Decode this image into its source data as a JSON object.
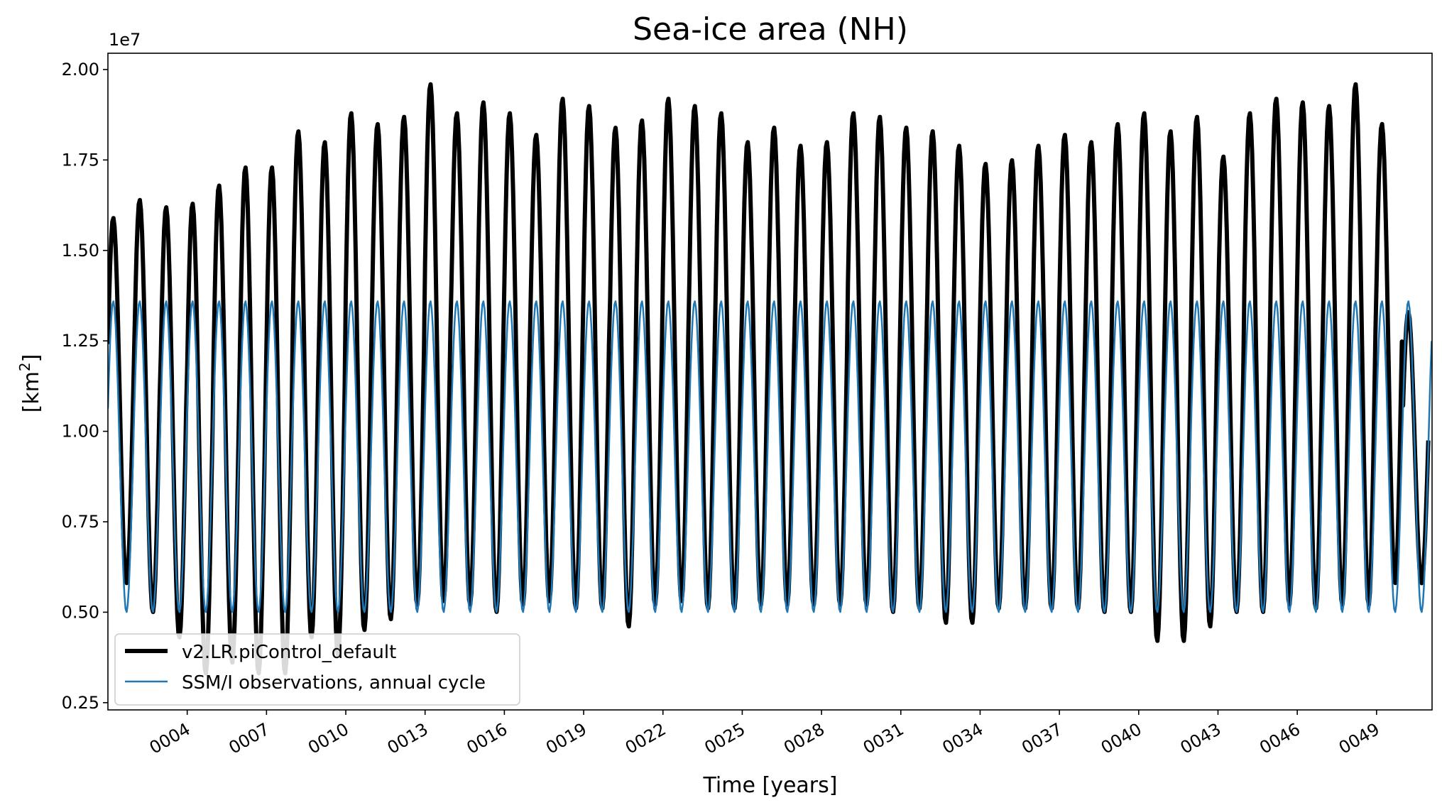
{
  "chart_data": {
    "type": "line",
    "title": "Sea-ice area (NH)",
    "xlabel": "Time [years]",
    "ylabel_base": "[km",
    "ylabel_sup": "2",
    "ylabel_end": "]",
    "offset_text": "1e7",
    "xlim": [
      1,
      51.1
    ],
    "ylim": [
      0.23,
      2.045
    ],
    "y_ticks": [
      0.25,
      0.5,
      0.75,
      1.0,
      1.25,
      1.5,
      1.75,
      2.0
    ],
    "y_tick_labels": [
      "0.25",
      "0.50",
      "0.75",
      "1.00",
      "1.25",
      "1.50",
      "1.75",
      "2.00"
    ],
    "x_ticks": [
      4,
      7,
      10,
      13,
      16,
      19,
      22,
      25,
      28,
      31,
      34,
      37,
      40,
      43,
      46,
      49
    ],
    "x_tick_labels": [
      "0004",
      "0007",
      "0010",
      "0013",
      "0016",
      "0019",
      "0022",
      "0025",
      "0028",
      "0031",
      "0034",
      "0037",
      "0040",
      "0043",
      "0046",
      "0049"
    ],
    "legend_position": "lower-left",
    "series": [
      {
        "name": "v2.LR.piControl_default",
        "color": "#000000",
        "annual_max": [
          1.59,
          1.64,
          1.62,
          1.63,
          1.68,
          1.73,
          1.73,
          1.83,
          1.8,
          1.88,
          1.85,
          1.87,
          1.96,
          1.88,
          1.91,
          1.88,
          1.82,
          1.92,
          1.9,
          1.84,
          1.86,
          1.92,
          1.9,
          1.88,
          1.8,
          1.84,
          1.79,
          1.8,
          1.88,
          1.87,
          1.84,
          1.83,
          1.79,
          1.74,
          1.75,
          1.79,
          1.82,
          1.8,
          1.85,
          1.88,
          1.83,
          1.87,
          1.76,
          1.88,
          1.92,
          1.91,
          1.9,
          1.96,
          1.85,
          1.33
        ],
        "annual_min": [
          0.58,
          0.5,
          0.43,
          0.33,
          0.36,
          0.33,
          0.33,
          0.43,
          0.38,
          0.45,
          0.48,
          0.52,
          0.53,
          0.52,
          0.5,
          0.52,
          0.53,
          0.51,
          0.51,
          0.46,
          0.52,
          0.53,
          0.51,
          0.51,
          0.52,
          0.52,
          0.52,
          0.52,
          0.52,
          0.5,
          0.51,
          0.47,
          0.47,
          0.51,
          0.51,
          0.51,
          0.51,
          0.5,
          0.5,
          0.42,
          0.42,
          0.46,
          0.5,
          0.5,
          0.52,
          0.51,
          0.52,
          0.52,
          0.58,
          0.58
        ]
      },
      {
        "name": "SSM/I observations, annual cycle",
        "color": "#1f77b4",
        "annual_cycle_max": 1.36,
        "annual_cycle_min": 0.5
      }
    ]
  }
}
